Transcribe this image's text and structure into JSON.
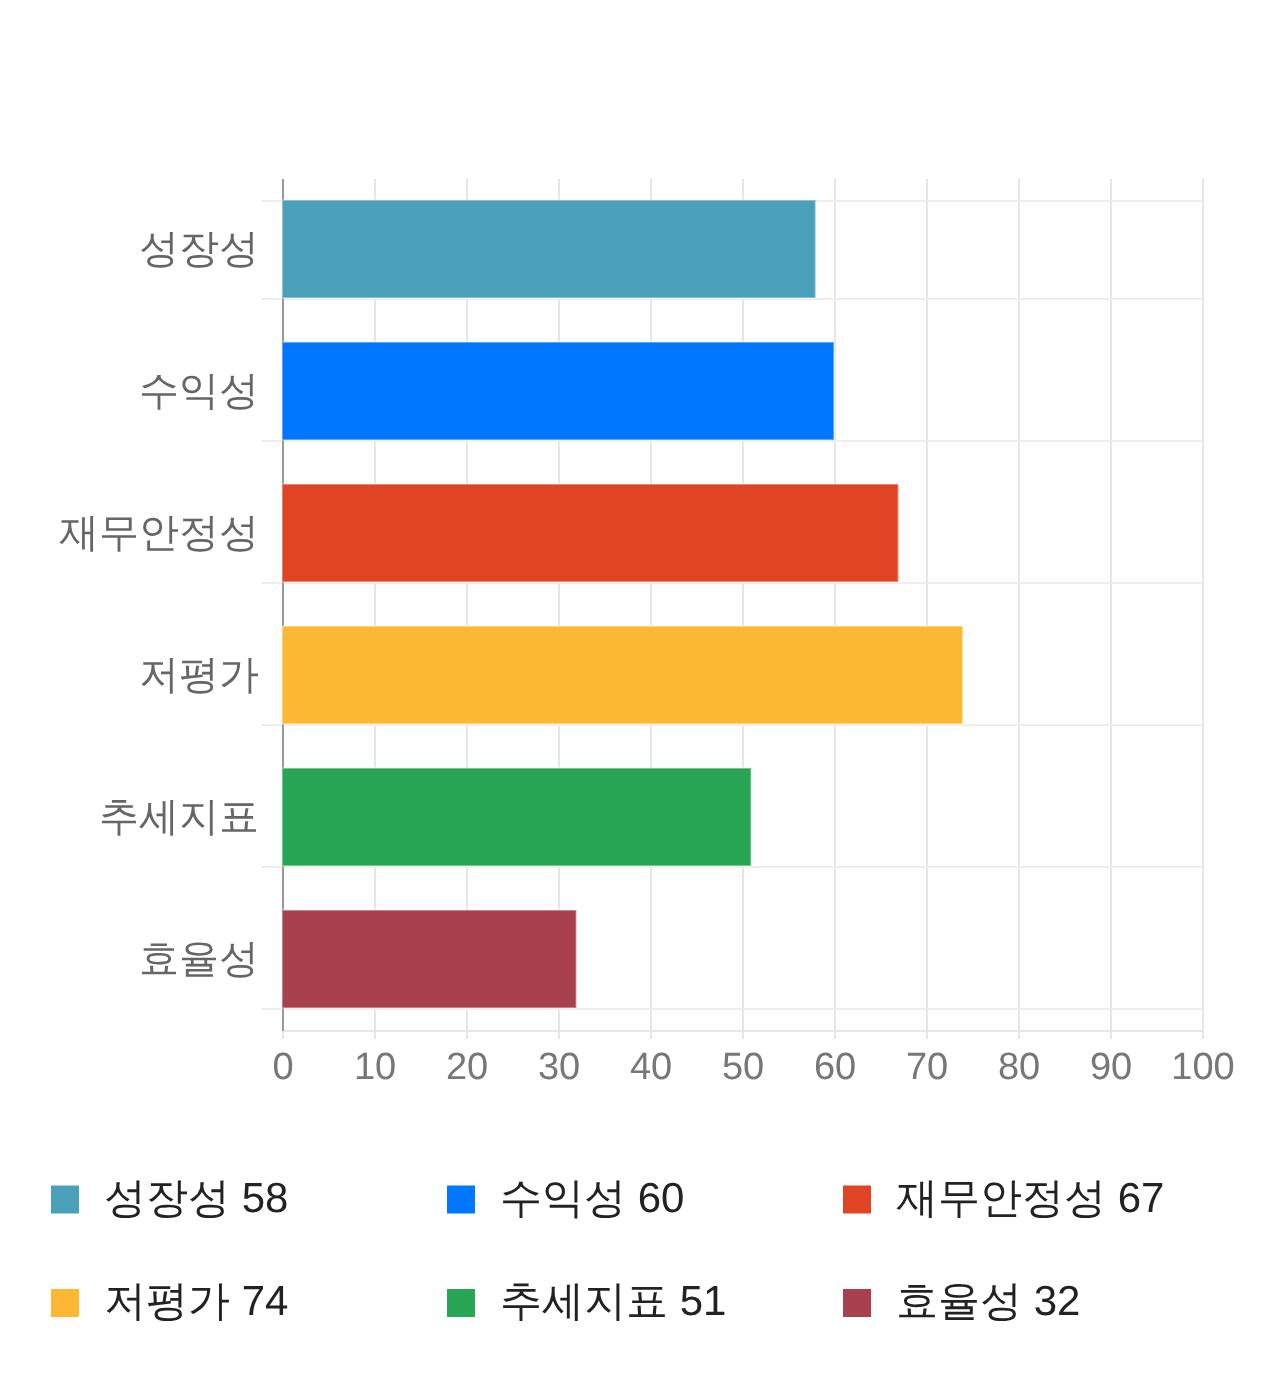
{
  "chart_data": {
    "type": "bar",
    "orientation": "horizontal",
    "stacked": true,
    "categories": [
      "성장성",
      "수익성",
      "재무안정성",
      "저평가",
      "추세지표",
      "효율성"
    ],
    "series": [
      {
        "name": "성장성 58",
        "color": "#4aa0b8",
        "values": [
          58,
          null,
          null,
          null,
          null,
          null
        ]
      },
      {
        "name": "수익성 60",
        "color": "#0077ff",
        "values": [
          null,
          60,
          null,
          null,
          null,
          null
        ]
      },
      {
        "name": "재무안정성 67",
        "color": "#e04424",
        "values": [
          null,
          null,
          67,
          null,
          null,
          null
        ]
      },
      {
        "name": "저평가 74",
        "color": "#fdb833",
        "values": [
          null,
          null,
          null,
          74,
          null,
          null
        ]
      },
      {
        "name": "추세지표 51",
        "color": "#29a655",
        "values": [
          null,
          null,
          null,
          null,
          51,
          null
        ]
      },
      {
        "name": "효율성 32",
        "color": "#a8404e",
        "values": [
          null,
          null,
          null,
          null,
          null,
          32
        ]
      }
    ],
    "xlim": [
      0,
      100
    ],
    "xticks": [
      0,
      10,
      20,
      30,
      40,
      50,
      60,
      70,
      80,
      90,
      100
    ],
    "grid": true,
    "legend": "bottom"
  }
}
